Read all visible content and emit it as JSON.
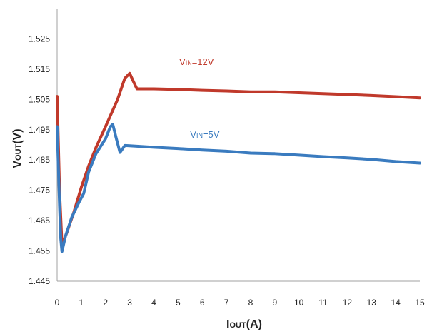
{
  "chart_data": {
    "type": "line",
    "title": "",
    "xlabel": {
      "main": "I",
      "sub": "OUT",
      "unit": "(A)"
    },
    "ylabel": {
      "main": "V",
      "sub": "OUT",
      "unit": "(V)"
    },
    "xlim": [
      0,
      15
    ],
    "ylim": [
      1.445,
      1.535
    ],
    "xticks": [
      "0",
      "1",
      "2",
      "3",
      "4",
      "5",
      "6",
      "7",
      "8",
      "9",
      "10",
      "11",
      "12",
      "13",
      "14",
      "15"
    ],
    "yticks": [
      "1.445",
      "1.455",
      "1.465",
      "1.475",
      "1.485",
      "1.495",
      "1.505",
      "1.515",
      "1.525"
    ],
    "grid": "none",
    "series": [
      {
        "label_main": "V",
        "label_sub": "IN",
        "label_value": "=12V",
        "color": "#c0392b",
        "x": [
          0,
          0.1,
          0.2,
          0.4,
          0.7,
          1.0,
          1.3,
          1.6,
          2.0,
          2.5,
          2.8,
          3.0,
          3.15,
          3.3,
          4,
          5,
          6,
          7,
          8,
          9,
          10,
          11,
          12,
          13,
          14,
          15
        ],
        "values": [
          1.506,
          1.475,
          1.457,
          1.461,
          1.468,
          1.476,
          1.483,
          1.489,
          1.496,
          1.505,
          1.512,
          1.5136,
          1.511,
          1.5085,
          1.5085,
          1.5083,
          1.508,
          1.5078,
          1.5075,
          1.5075,
          1.5072,
          1.5069,
          1.5066,
          1.5063,
          1.5059,
          1.5055
        ]
      },
      {
        "label_main": "V",
        "label_sub": "IN",
        "label_value": "=5V",
        "color": "#3a7bbf",
        "x": [
          0,
          0.1,
          0.15,
          0.2,
          0.35,
          0.6,
          0.9,
          1.1,
          1.3,
          1.6,
          2.0,
          2.2,
          2.3,
          2.45,
          2.6,
          2.8,
          3.0,
          4,
          5,
          6,
          7,
          8,
          9,
          10,
          11,
          12,
          13,
          14,
          15
        ],
        "values": [
          1.496,
          1.47,
          1.459,
          1.4548,
          1.46,
          1.466,
          1.471,
          1.474,
          1.481,
          1.487,
          1.492,
          1.496,
          1.4968,
          1.492,
          1.4875,
          1.4898,
          1.4897,
          1.4892,
          1.4888,
          1.4883,
          1.4879,
          1.4873,
          1.4871,
          1.4866,
          1.4861,
          1.4857,
          1.4852,
          1.4845,
          1.484
        ]
      }
    ]
  }
}
